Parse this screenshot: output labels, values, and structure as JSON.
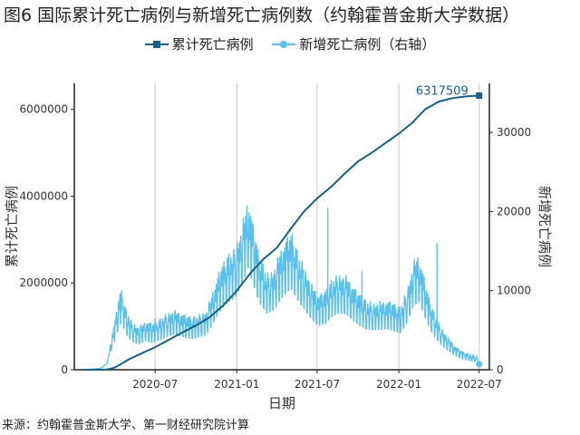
{
  "title": "图6 国际累计死亡病例与新增死亡病例数（约翰霍普金斯大学数据）",
  "source": "来源：约翰霍普金斯大学、第一财经研究院计算",
  "colors": {
    "cumulative": "#1a5f8a",
    "daily": "#5bc0eb",
    "grid": "#c8c8c8",
    "axis": "#222222"
  },
  "chart_data": {
    "type": "line",
    "xlabel": "日期",
    "ylabel_left": "累计死亡病例",
    "ylabel_right": "新增死亡病例",
    "x_ticks": [
      "2020-07",
      "2021-01",
      "2021-07",
      "2022-01",
      "2022-07"
    ],
    "y_left_ticks": [
      0,
      2000000,
      4000000,
      6000000
    ],
    "y_right_ticks": [
      0,
      10000,
      20000,
      30000
    ],
    "ylim_left": [
      0,
      6600000
    ],
    "ylim_right": [
      0,
      36200
    ],
    "xlim": [
      "2020-01-01",
      "2022-07-24"
    ],
    "grid": "vertical",
    "legend": "top",
    "annotation": {
      "text": "6317509",
      "x": "2022-07-01",
      "y": 6317509
    },
    "series": [
      {
        "name": "累计死亡病例",
        "axis": "left",
        "marker": "square",
        "points": [
          [
            "2020-01-22",
            0
          ],
          [
            "2020-03-01",
            3000
          ],
          [
            "2020-03-15",
            6000
          ],
          [
            "2020-04-01",
            50000
          ],
          [
            "2020-04-15",
            130000
          ],
          [
            "2020-05-01",
            230000
          ],
          [
            "2020-06-01",
            380000
          ],
          [
            "2020-07-01",
            520000
          ],
          [
            "2020-08-01",
            690000
          ],
          [
            "2020-09-01",
            860000
          ],
          [
            "2020-10-01",
            1020000
          ],
          [
            "2020-11-01",
            1210000
          ],
          [
            "2020-12-01",
            1480000
          ],
          [
            "2021-01-01",
            1820000
          ],
          [
            "2021-02-01",
            2230000
          ],
          [
            "2021-03-01",
            2540000
          ],
          [
            "2021-04-01",
            2810000
          ],
          [
            "2021-05-01",
            3230000
          ],
          [
            "2021-06-01",
            3640000
          ],
          [
            "2021-07-01",
            3950000
          ],
          [
            "2021-08-01",
            4210000
          ],
          [
            "2021-09-01",
            4520000
          ],
          [
            "2021-10-01",
            4800000
          ],
          [
            "2021-11-01",
            5000000
          ],
          [
            "2021-12-01",
            5220000
          ],
          [
            "2022-01-01",
            5440000
          ],
          [
            "2022-02-01",
            5700000
          ],
          [
            "2022-03-01",
            6000000
          ],
          [
            "2022-04-01",
            6180000
          ],
          [
            "2022-05-01",
            6260000
          ],
          [
            "2022-06-01",
            6300000
          ],
          [
            "2022-07-01",
            6317509
          ]
        ]
      },
      {
        "name": "新增死亡病例（右轴）",
        "axis": "right",
        "marker": "circle",
        "points": [
          [
            "2020-01-22",
            0
          ],
          [
            "2020-02-15",
            100
          ],
          [
            "2020-03-01",
            200
          ],
          [
            "2020-03-15",
            800
          ],
          [
            "2020-03-25",
            3500
          ],
          [
            "2020-04-05",
            6000
          ],
          [
            "2020-04-12",
            8000
          ],
          [
            "2020-04-17",
            8300
          ],
          [
            "2020-04-25",
            6500
          ],
          [
            "2020-05-10",
            5000
          ],
          [
            "2020-05-25",
            4500
          ],
          [
            "2020-06-10",
            5100
          ],
          [
            "2020-06-25",
            4800
          ],
          [
            "2020-07-10",
            5200
          ],
          [
            "2020-07-25",
            5800
          ],
          [
            "2020-08-10",
            6200
          ],
          [
            "2020-08-25",
            6000
          ],
          [
            "2020-09-10",
            5600
          ],
          [
            "2020-09-25",
            5500
          ],
          [
            "2020-10-10",
            5800
          ],
          [
            "2020-10-25",
            6200
          ],
          [
            "2020-11-10",
            8500
          ],
          [
            "2020-11-25",
            10500
          ],
          [
            "2020-12-10",
            11800
          ],
          [
            "2020-12-25",
            12500
          ],
          [
            "2021-01-10",
            14500
          ],
          [
            "2021-01-20",
            16500
          ],
          [
            "2021-01-27",
            18000
          ],
          [
            "2021-02-05",
            15500
          ],
          [
            "2021-02-20",
            12000
          ],
          [
            "2021-03-10",
            10000
          ],
          [
            "2021-03-25",
            10500
          ],
          [
            "2021-04-10",
            12500
          ],
          [
            "2021-04-25",
            13800
          ],
          [
            "2021-05-05",
            14200
          ],
          [
            "2021-05-20",
            12000
          ],
          [
            "2021-06-05",
            10500
          ],
          [
            "2021-06-20",
            8800
          ],
          [
            "2021-07-05",
            7800
          ],
          [
            "2021-07-20",
            8200
          ],
          [
            "2021-08-05",
            9500
          ],
          [
            "2021-08-20",
            10000
          ],
          [
            "2021-09-05",
            9800
          ],
          [
            "2021-09-20",
            8700
          ],
          [
            "2021-10-05",
            7800
          ],
          [
            "2021-10-20",
            7200
          ],
          [
            "2021-11-05",
            7000
          ],
          [
            "2021-11-20",
            7100
          ],
          [
            "2021-12-05",
            7200
          ],
          [
            "2021-12-20",
            6900
          ],
          [
            "2022-01-05",
            6500
          ],
          [
            "2022-01-20",
            8500
          ],
          [
            "2022-02-05",
            11500
          ],
          [
            "2022-02-15",
            12000
          ],
          [
            "2022-02-25",
            10000
          ],
          [
            "2022-03-10",
            7500
          ],
          [
            "2022-03-25",
            5500
          ],
          [
            "2022-04-10",
            4200
          ],
          [
            "2022-04-25",
            3200
          ],
          [
            "2022-05-10",
            2400
          ],
          [
            "2022-05-25",
            1900
          ],
          [
            "2022-06-10",
            1600
          ],
          [
            "2022-06-25",
            1400
          ],
          [
            "2022-07-01",
            700
          ]
        ]
      }
    ],
    "spikes": [
      [
        "2021-07-25",
        20500
      ],
      [
        "2022-03-28",
        16000
      ],
      [
        "2021-01-20",
        18500
      ],
      [
        "2021-04-28",
        15000
      ],
      [
        "2020-07-01",
        6500
      ],
      [
        "2020-04-14",
        8500
      ],
      [
        "2021-10-10",
        12500
      ],
      [
        "2022-01-25",
        10500
      ]
    ]
  }
}
